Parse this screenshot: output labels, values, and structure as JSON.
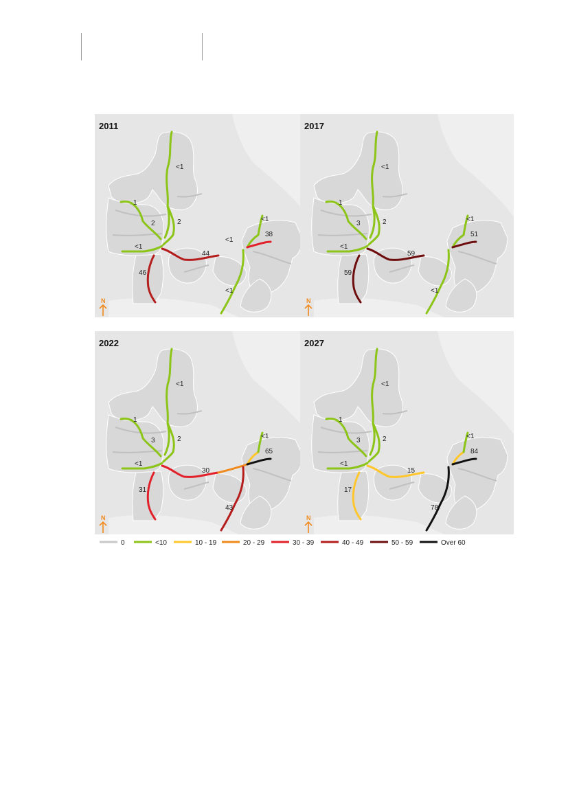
{
  "legend": {
    "items": [
      {
        "label": "0",
        "color": "#c8c8c8"
      },
      {
        "label": "<10",
        "color": "#8cc418"
      },
      {
        "label": "10 - 19",
        "color": "#ffc72c"
      },
      {
        "label": "20 - 29",
        "color": "#f08a1c"
      },
      {
        "label": "30 - 39",
        "color": "#e2202a"
      },
      {
        "label": "40 - 49",
        "color": "#b51d1d"
      },
      {
        "label": "50 - 59",
        "color": "#6e0d0d"
      },
      {
        "label": "Over 60",
        "color": "#111111"
      }
    ]
  },
  "north_label": "N",
  "maps": [
    {
      "year": "2011",
      "colors": {
        "north": "#8cc418",
        "west": "#8cc418",
        "mid": "#8cc418",
        "hwest": "#8cc418",
        "south": "#b51d1d",
        "east": "#b51d1d",
        "zn": "#8cc418",
        "zs": "#8cc418",
        "ze": "#e2202a",
        "cph": "#8cc418"
      },
      "labels": {
        "north": "<1",
        "west": "1",
        "mid": "2",
        "mid2": "2",
        "hwest": "<1",
        "south": "46",
        "east": "44",
        "zn": "<1",
        "zs": "<1",
        "ze": "38",
        "cph": "<1"
      }
    },
    {
      "year": "2017",
      "colors": {
        "north": "#8cc418",
        "west": "#8cc418",
        "mid": "#8cc418",
        "hwest": "#8cc418",
        "south": "#6e0d0d",
        "east": "#6e0d0d",
        "zn": "#8cc418",
        "zs": "#8cc418",
        "ze": "#6e0d0d",
        "cph": "#8cc418"
      },
      "labels": {
        "north": "<1",
        "west": "1",
        "mid": "3",
        "mid2": "2",
        "hwest": "<1",
        "south": "59",
        "east": "59",
        "zn": "",
        "zs": "<1",
        "ze": "51",
        "cph": "<1"
      }
    },
    {
      "year": "2022",
      "colors": {
        "north": "#8cc418",
        "west": "#8cc418",
        "mid": "#8cc418",
        "hwest": "#8cc418",
        "south": "#e2202a",
        "east": "#e2202a",
        "east2": "#f08a1c",
        "zn": "#ffc72c",
        "zs": "#b51d1d",
        "ze": "#111111",
        "cph": "#8cc418"
      },
      "labels": {
        "north": "<1",
        "west": "1",
        "mid": "3",
        "mid2": "2",
        "hwest": "<1",
        "south": "31",
        "east": "30",
        "zn": "",
        "zs": "43",
        "ze": "65",
        "cph": "<1"
      }
    },
    {
      "year": "2027",
      "colors": {
        "north": "#8cc418",
        "west": "#8cc418",
        "mid": "#8cc418",
        "hwest": "#8cc418",
        "south": "#ffc72c",
        "east": "#ffc72c",
        "zn": "#ffc72c",
        "zs": "#111111",
        "ze": "#111111",
        "cph": "#8cc418"
      },
      "labels": {
        "north": "<1",
        "west": "1",
        "mid": "3",
        "mid2": "2",
        "hwest": "<1",
        "south": "17",
        "east": "15",
        "zn": "",
        "zs": "78",
        "ze": "84",
        "cph": "<1"
      }
    }
  ]
}
